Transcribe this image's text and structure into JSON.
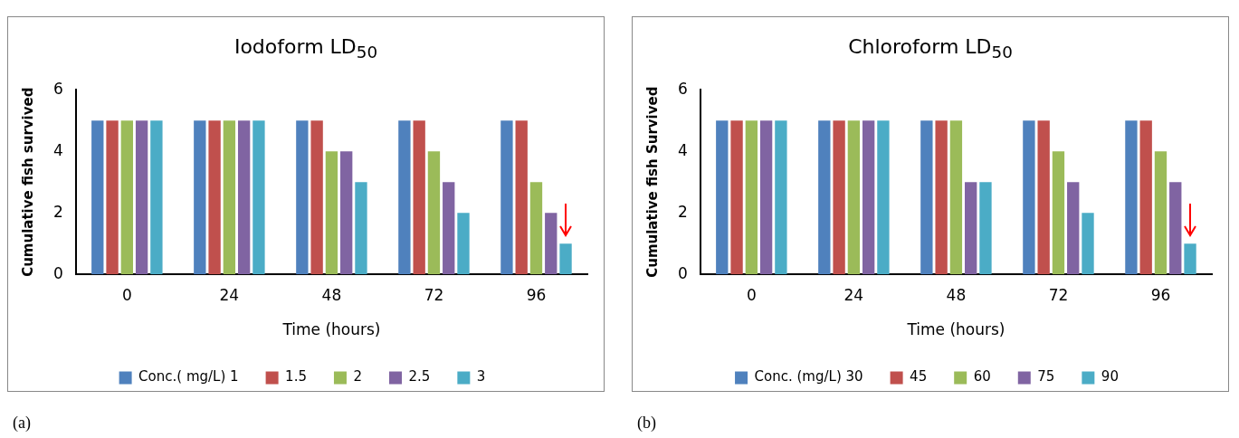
{
  "chart_data": [
    {
      "type": "bar",
      "title": "Iodoform LD$_{50}$",
      "xlabel": "Time (hours)",
      "ylabel": "Cumulative fish survived",
      "categories": [
        "0",
        "24",
        "48",
        "72",
        "96"
      ],
      "ylim": [
        0,
        6
      ],
      "yticks": [
        0,
        2,
        4,
        6
      ],
      "grid": false,
      "legend": "bottom",
      "annotations": [
        "(a)"
      ],
      "series": [
        {
          "name": "Conc.( mg/L) 1",
          "color": "#4f81bd",
          "values": [
            5,
            5,
            5,
            5,
            5
          ]
        },
        {
          "name": "1.5",
          "color": "#c0504d",
          "values": [
            5,
            5,
            5,
            5,
            5
          ]
        },
        {
          "name": "2",
          "color": "#9bbb59",
          "values": [
            5,
            5,
            4,
            4,
            3
          ]
        },
        {
          "name": "2.5",
          "color": "#8064a2",
          "values": [
            5,
            5,
            4,
            3,
            2
          ]
        },
        {
          "name": "3",
          "color": "#4bacc6",
          "values": [
            5,
            5,
            3,
            2,
            1
          ]
        }
      ]
    },
    {
      "type": "bar",
      "title": "Chloroform LD$_{50}$",
      "xlabel": "Time (hours)",
      "ylabel": "Cumulative fish Survived",
      "categories": [
        "0",
        "24",
        "48",
        "72",
        "96"
      ],
      "ylim": [
        0,
        6
      ],
      "yticks": [
        0,
        2,
        4,
        6
      ],
      "grid": false,
      "legend": "bottom",
      "annotations": [
        "(b)"
      ],
      "series": [
        {
          "name": "Conc. (mg/L) 30",
          "color": "#4f81bd",
          "values": [
            5,
            5,
            5,
            5,
            5
          ]
        },
        {
          "name": "45",
          "color": "#c0504d",
          "values": [
            5,
            5,
            5,
            5,
            5
          ]
        },
        {
          "name": "60",
          "color": "#9bbb59",
          "values": [
            5,
            5,
            5,
            4,
            4
          ]
        },
        {
          "name": "75",
          "color": "#8064a2",
          "values": [
            5,
            5,
            3,
            3,
            3
          ]
        },
        {
          "name": "90",
          "color": "#4bacc6",
          "values": [
            5,
            5,
            3,
            2,
            1
          ]
        }
      ]
    }
  ]
}
